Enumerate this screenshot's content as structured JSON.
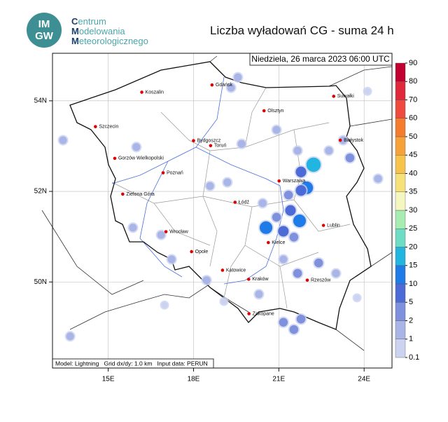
{
  "header": {
    "logo": {
      "top": "IM",
      "bottom": "GW"
    },
    "institute": [
      "Centrum",
      "Modelowania",
      "Meteorologicznego"
    ],
    "title": "Liczba wyładowań CG - suma 24 h"
  },
  "map": {
    "date": "Niedziela, 26 marca 2023 06:00 UTC",
    "footer": "Model: Lightning   Grid dx/dy: 1.0 km   Input data: PERUN",
    "xlim": [
      13.04,
      24.98
    ],
    "ylim": [
      48.1,
      55.05
    ],
    "xticks": [
      {
        "value": 15,
        "label": "15E"
      },
      {
        "value": 18,
        "label": "18E"
      },
      {
        "value": 21,
        "label": "21E"
      },
      {
        "value": 24,
        "label": "24E"
      }
    ],
    "yticks": [
      {
        "value": 54,
        "label": "54N"
      },
      {
        "value": 52,
        "label": "52N"
      },
      {
        "value": 50,
        "label": "50N"
      }
    ],
    "cities": [
      {
        "name": "Gdańsk",
        "lon": 18.65,
        "lat": 54.35
      },
      {
        "name": "Koszalin",
        "lon": 16.18,
        "lat": 54.19
      },
      {
        "name": "Szczecin",
        "lon": 14.55,
        "lat": 53.43
      },
      {
        "name": "Suwałki",
        "lon": 22.93,
        "lat": 54.1
      },
      {
        "name": "Olsztyn",
        "lon": 20.48,
        "lat": 53.78
      },
      {
        "name": "Białystok",
        "lon": 23.16,
        "lat": 53.13
      },
      {
        "name": "Bydgoszcz",
        "lon": 18.0,
        "lat": 53.12
      },
      {
        "name": "Toruń",
        "lon": 18.6,
        "lat": 53.01
      },
      {
        "name": "Gorzów Wielkopolski",
        "lon": 15.23,
        "lat": 52.73
      },
      {
        "name": "Poznań",
        "lon": 16.93,
        "lat": 52.41
      },
      {
        "name": "Warszawa",
        "lon": 21.01,
        "lat": 52.23
      },
      {
        "name": "Zielona Góra",
        "lon": 15.51,
        "lat": 51.94
      },
      {
        "name": "Łódź",
        "lon": 19.46,
        "lat": 51.76
      },
      {
        "name": "Lublin",
        "lon": 22.57,
        "lat": 51.25
      },
      {
        "name": "Wrocław",
        "lon": 17.03,
        "lat": 51.11
      },
      {
        "name": "Kielce",
        "lon": 20.63,
        "lat": 50.87
      },
      {
        "name": "Opole",
        "lon": 17.93,
        "lat": 50.67
      },
      {
        "name": "Katowice",
        "lon": 19.02,
        "lat": 50.26
      },
      {
        "name": "Kraków",
        "lon": 19.94,
        "lat": 50.06
      },
      {
        "name": "Rzeszów",
        "lon": 22.0,
        "lat": 50.04
      },
      {
        "name": "Zakopane",
        "lon": 19.95,
        "lat": 49.3
      }
    ],
    "strikes": [
      {
        "lon": 22.22,
        "lat": 52.59,
        "value": 15
      },
      {
        "lon": 21.98,
        "lat": 52.08,
        "value": 10
      },
      {
        "lon": 21.78,
        "lat": 52.02,
        "value": 5
      },
      {
        "lon": 21.73,
        "lat": 51.35,
        "value": 10
      },
      {
        "lon": 20.55,
        "lat": 51.2,
        "value": 10
      },
      {
        "lon": 21.16,
        "lat": 51.12,
        "value": 5
      },
      {
        "lon": 21.41,
        "lat": 51.58,
        "value": 5
      },
      {
        "lon": 21.34,
        "lat": 51.92,
        "value": 2
      },
      {
        "lon": 20.92,
        "lat": 51.43,
        "value": 2
      },
      {
        "lon": 21.53,
        "lat": 50.99,
        "value": 2
      },
      {
        "lon": 21.16,
        "lat": 49.11,
        "value": 2
      },
      {
        "lon": 21.53,
        "lat": 48.95,
        "value": 2
      },
      {
        "lon": 21.78,
        "lat": 49.18,
        "value": 2
      },
      {
        "lon": 21.66,
        "lat": 50.19,
        "value": 2
      },
      {
        "lon": 21.16,
        "lat": 50.5,
        "value": 1
      },
      {
        "lon": 23.5,
        "lat": 52.74,
        "value": 2
      },
      {
        "lon": 23.26,
        "lat": 53.13,
        "value": 1
      },
      {
        "lon": 22.76,
        "lat": 52.9,
        "value": 1
      },
      {
        "lon": 21.66,
        "lat": 52.9,
        "value": 1
      },
      {
        "lon": 20.92,
        "lat": 53.36,
        "value": 1
      },
      {
        "lon": 19.56,
        "lat": 54.52,
        "value": 1
      },
      {
        "lon": 19.32,
        "lat": 54.29,
        "value": 1
      },
      {
        "lon": 18.58,
        "lat": 52.12,
        "value": 1
      },
      {
        "lon": 19.19,
        "lat": 52.2,
        "value": 1
      },
      {
        "lon": 20.43,
        "lat": 51.74,
        "value": 1
      },
      {
        "lon": 19.69,
        "lat": 53.05,
        "value": 1
      },
      {
        "lon": 15.99,
        "lat": 52.98,
        "value": 1
      },
      {
        "lon": 13.41,
        "lat": 53.13,
        "value": 1
      },
      {
        "lon": 16.86,
        "lat": 51.04,
        "value": 1
      },
      {
        "lon": 15.87,
        "lat": 51.2,
        "value": 1
      },
      {
        "lon": 17.23,
        "lat": 50.5,
        "value": 1
      },
      {
        "lon": 18.46,
        "lat": 50.04,
        "value": 1
      },
      {
        "lon": 20.3,
        "lat": 49.73,
        "value": 1
      },
      {
        "lon": 23.01,
        "lat": 50.19,
        "value": 1
      },
      {
        "lon": 13.66,
        "lat": 48.8,
        "value": 1
      },
      {
        "lon": 16.98,
        "lat": 49.49,
        "value": 0.1
      },
      {
        "lon": 19.07,
        "lat": 49.57,
        "value": 0.1
      },
      {
        "lon": 24.12,
        "lat": 54.21,
        "value": 0.1
      },
      {
        "lon": 24.49,
        "lat": 52.28,
        "value": 1
      },
      {
        "lon": 23.75,
        "lat": 49.65,
        "value": 0.1
      },
      {
        "lon": 22.4,
        "lat": 50.42,
        "value": 2
      },
      {
        "lon": 21.78,
        "lat": 52.43,
        "value": 5
      }
    ]
  },
  "colorbar": {
    "ticks": [
      0.1,
      1,
      2,
      5,
      10,
      15,
      20,
      25,
      30,
      35,
      40,
      45,
      50,
      60,
      70,
      80,
      90
    ],
    "colors": [
      "#ccd3f0",
      "#a9b5e6",
      "#7f90dc",
      "#4d6bd6",
      "#1f7be8",
      "#22b5e0",
      "#6fdcc5",
      "#a7ecb0",
      "#f5f7c0",
      "#f7e27a",
      "#f7c34a",
      "#f7a238",
      "#f47c2c",
      "#ee4a3e",
      "#e0283c",
      "#c00030"
    ]
  }
}
